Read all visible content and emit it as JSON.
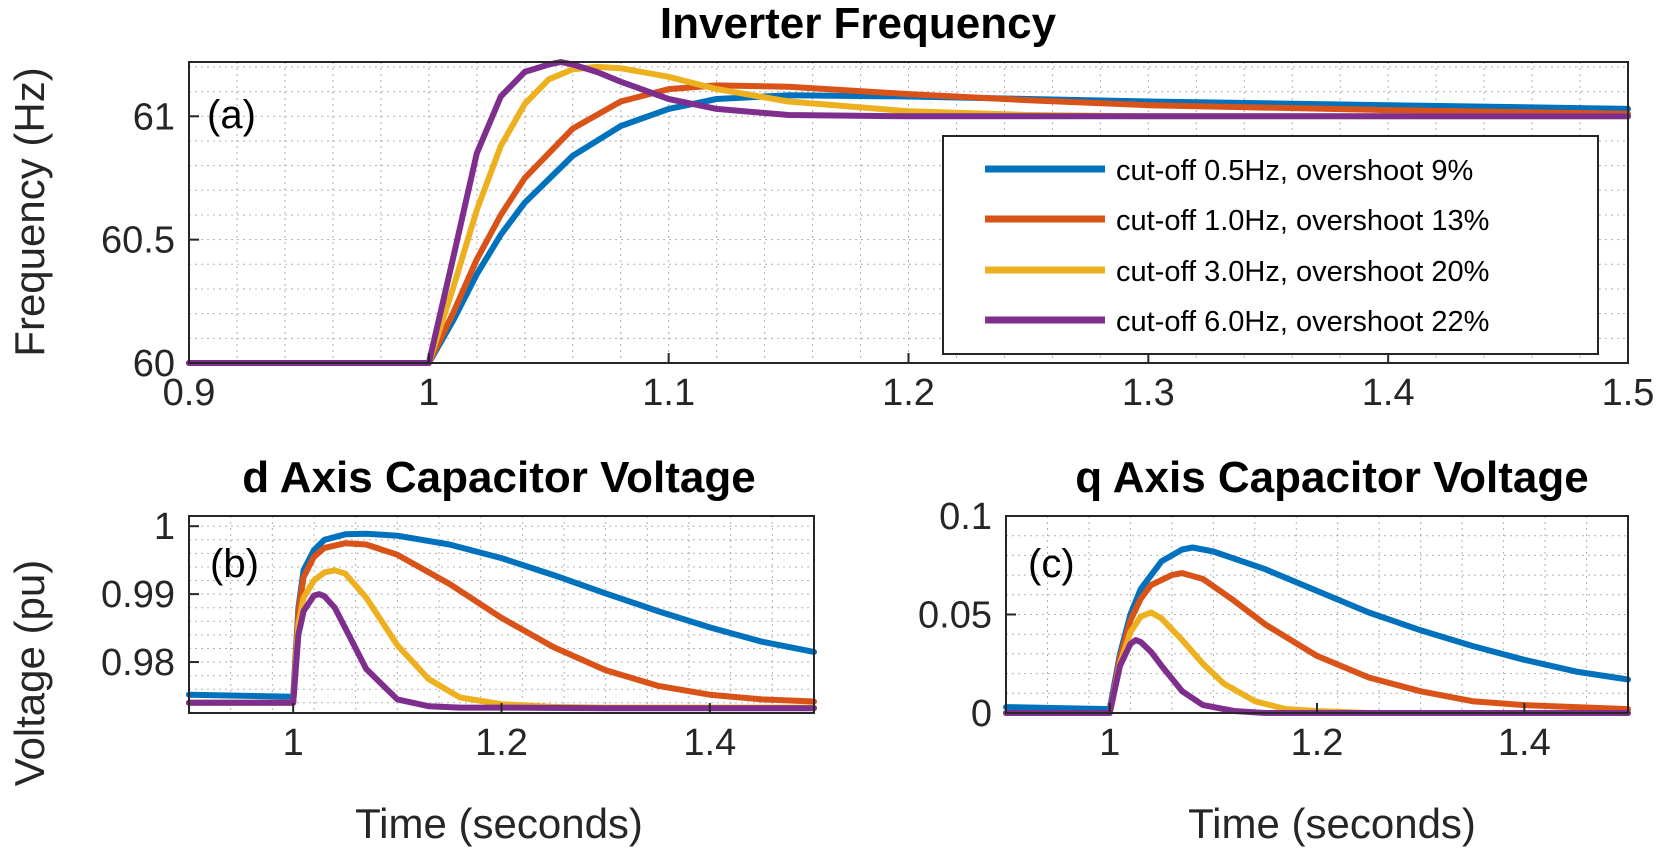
{
  "colors": {
    "series": [
      "#0072BD",
      "#D95319",
      "#EDB120",
      "#7E2F8E"
    ],
    "grid": "#b0b0b0",
    "axis": "#262626"
  },
  "chart_data": [
    {
      "id": "freq",
      "type": "line",
      "title": "Inverter Frequency",
      "panel_label": "(a)",
      "xlabel": "",
      "ylabel": "Frequency (Hz)",
      "xlim": [
        0.9,
        1.5
      ],
      "ylim": [
        60,
        61.22
      ],
      "xticks": [
        0.9,
        1.0,
        1.1,
        1.2,
        1.3,
        1.4,
        1.5
      ],
      "xtick_labels": [
        "0.9",
        "1",
        "1.1",
        "1.2",
        "1.3",
        "1.4",
        "1.5"
      ],
      "yticks": [
        60,
        60.5,
        61
      ],
      "ytick_labels": [
        "60",
        "60.5",
        "61"
      ],
      "grid": "minor",
      "legend": {
        "position": "lower-right",
        "entries": [
          "cut-off 0.5Hz, overshoot 9%",
          "cut-off 1.0Hz, overshoot 13%",
          "cut-off 3.0Hz, overshoot 20%",
          "cut-off 6.0Hz, overshoot 22%"
        ]
      },
      "series": [
        {
          "x": [
            0.9,
            1.0,
            1.01,
            1.02,
            1.03,
            1.04,
            1.06,
            1.08,
            1.1,
            1.12,
            1.15,
            1.2,
            1.25,
            1.3,
            1.4,
            1.5
          ],
          "y": [
            60,
            60,
            60.17,
            60.36,
            60.52,
            60.65,
            60.84,
            60.96,
            61.03,
            61.07,
            61.085,
            61.08,
            61.07,
            61.06,
            61.045,
            61.03
          ]
        },
        {
          "x": [
            0.9,
            1.0,
            1.01,
            1.02,
            1.03,
            1.04,
            1.06,
            1.08,
            1.1,
            1.12,
            1.15,
            1.2,
            1.25,
            1.3,
            1.4,
            1.5
          ],
          "y": [
            60,
            60,
            60.2,
            60.42,
            60.6,
            60.75,
            60.95,
            61.06,
            61.11,
            61.125,
            61.12,
            61.09,
            61.065,
            61.045,
            61.025,
            61.01
          ]
        },
        {
          "x": [
            0.9,
            1.0,
            1.01,
            1.02,
            1.03,
            1.04,
            1.05,
            1.06,
            1.07,
            1.08,
            1.1,
            1.12,
            1.15,
            1.2,
            1.25,
            1.3,
            1.5
          ],
          "y": [
            60,
            60,
            60.3,
            60.62,
            60.88,
            61.05,
            61.15,
            61.19,
            61.2,
            61.195,
            61.16,
            61.11,
            61.06,
            61.02,
            61.005,
            61.0,
            61.0
          ]
        },
        {
          "x": [
            0.9,
            1.0,
            1.01,
            1.02,
            1.03,
            1.04,
            1.05,
            1.055,
            1.06,
            1.07,
            1.08,
            1.1,
            1.12,
            1.15,
            1.2,
            1.5
          ],
          "y": [
            60,
            60,
            60.42,
            60.85,
            61.08,
            61.18,
            61.21,
            61.22,
            61.21,
            61.18,
            61.14,
            61.07,
            61.03,
            61.005,
            61.0,
            61.0
          ]
        }
      ]
    },
    {
      "id": "dvolt",
      "type": "line",
      "title": "d Axis Capacitor Voltage",
      "panel_label": "(b)",
      "xlabel": "Time (seconds)",
      "ylabel": "Voltage (pu)",
      "xlim": [
        0.9,
        1.5
      ],
      "ylim": [
        0.9725,
        1.0015
      ],
      "xticks": [
        1.0,
        1.2,
        1.4
      ],
      "xtick_labels": [
        "1",
        "1.2",
        "1.4"
      ],
      "yticks": [
        0.98,
        0.99,
        1.0
      ],
      "ytick_labels": [
        "0.98",
        "0.99",
        "1"
      ],
      "grid": "minor",
      "series": [
        {
          "x": [
            0.9,
            1.0,
            1.005,
            1.01,
            1.02,
            1.03,
            1.05,
            1.07,
            1.1,
            1.15,
            1.2,
            1.25,
            1.3,
            1.35,
            1.4,
            1.45,
            1.5
          ],
          "y": [
            0.9752,
            0.9749,
            0.988,
            0.9935,
            0.9965,
            0.998,
            0.9988,
            0.9989,
            0.9986,
            0.9973,
            0.9953,
            0.9928,
            0.9901,
            0.9875,
            0.9851,
            0.983,
            0.9815
          ]
        },
        {
          "x": [
            0.9,
            1.0,
            1.005,
            1.01,
            1.02,
            1.03,
            1.05,
            1.07,
            1.1,
            1.15,
            1.2,
            1.25,
            1.3,
            1.35,
            1.4,
            1.45,
            1.5
          ],
          "y": [
            0.974,
            0.974,
            0.9875,
            0.9925,
            0.9955,
            0.9968,
            0.9975,
            0.9973,
            0.9958,
            0.9915,
            0.9865,
            0.9822,
            0.9788,
            0.9765,
            0.9752,
            0.9745,
            0.9742
          ]
        },
        {
          "x": [
            0.9,
            1.0,
            1.005,
            1.01,
            1.02,
            1.03,
            1.04,
            1.05,
            1.07,
            1.1,
            1.13,
            1.16,
            1.2,
            1.25,
            1.3,
            1.4,
            1.5
          ],
          "y": [
            0.974,
            0.974,
            0.9855,
            0.9895,
            0.992,
            0.9932,
            0.9935,
            0.993,
            0.9895,
            0.9825,
            0.9775,
            0.9748,
            0.9738,
            0.9734,
            0.9733,
            0.9733,
            0.9733
          ]
        },
        {
          "x": [
            0.9,
            1.0,
            1.005,
            1.01,
            1.02,
            1.025,
            1.03,
            1.04,
            1.05,
            1.07,
            1.1,
            1.13,
            1.16,
            1.2,
            1.3,
            1.5
          ],
          "y": [
            0.974,
            0.974,
            0.984,
            0.9875,
            0.9898,
            0.99,
            0.9897,
            0.988,
            0.985,
            0.979,
            0.9745,
            0.9735,
            0.9733,
            0.9733,
            0.9732,
            0.9732
          ]
        }
      ]
    },
    {
      "id": "qvolt",
      "type": "line",
      "title": "q Axis Capacitor Voltage",
      "panel_label": "(c)",
      "xlabel": "Time (seconds)",
      "ylabel": "",
      "xlim": [
        0.9,
        1.5
      ],
      "ylim": [
        0,
        0.1
      ],
      "xticks": [
        1.0,
        1.2,
        1.4
      ],
      "xtick_labels": [
        "1",
        "1.2",
        "1.4"
      ],
      "yticks": [
        0,
        0.05,
        0.1
      ],
      "ytick_labels": [
        "0",
        "0.05",
        "0.1"
      ],
      "grid": "minor",
      "series": [
        {
          "x": [
            0.9,
            1.0,
            1.01,
            1.02,
            1.03,
            1.05,
            1.07,
            1.08,
            1.1,
            1.15,
            1.2,
            1.25,
            1.3,
            1.35,
            1.4,
            1.45,
            1.5
          ],
          "y": [
            0.003,
            0.002,
            0.03,
            0.05,
            0.063,
            0.077,
            0.083,
            0.084,
            0.082,
            0.073,
            0.062,
            0.051,
            0.042,
            0.034,
            0.027,
            0.021,
            0.017
          ]
        },
        {
          "x": [
            0.9,
            1.0,
            1.01,
            1.02,
            1.03,
            1.04,
            1.06,
            1.07,
            1.09,
            1.12,
            1.15,
            1.2,
            1.25,
            1.3,
            1.35,
            1.4,
            1.5
          ],
          "y": [
            0,
            0,
            0.028,
            0.047,
            0.058,
            0.065,
            0.07,
            0.071,
            0.068,
            0.057,
            0.045,
            0.029,
            0.018,
            0.011,
            0.006,
            0.004,
            0.002
          ]
        },
        {
          "x": [
            0.9,
            1.0,
            1.01,
            1.02,
            1.03,
            1.04,
            1.05,
            1.07,
            1.09,
            1.11,
            1.14,
            1.17,
            1.2,
            1.25,
            1.5
          ],
          "y": [
            0,
            0,
            0.025,
            0.041,
            0.049,
            0.051,
            0.048,
            0.037,
            0.025,
            0.015,
            0.006,
            0.002,
            0.001,
            0,
            0
          ]
        },
        {
          "x": [
            0.9,
            1.0,
            1.01,
            1.02,
            1.025,
            1.03,
            1.04,
            1.05,
            1.07,
            1.09,
            1.12,
            1.15,
            1.5
          ],
          "y": [
            0,
            0,
            0.024,
            0.035,
            0.037,
            0.036,
            0.031,
            0.024,
            0.011,
            0.004,
            0.001,
            0,
            0
          ]
        }
      ]
    }
  ]
}
